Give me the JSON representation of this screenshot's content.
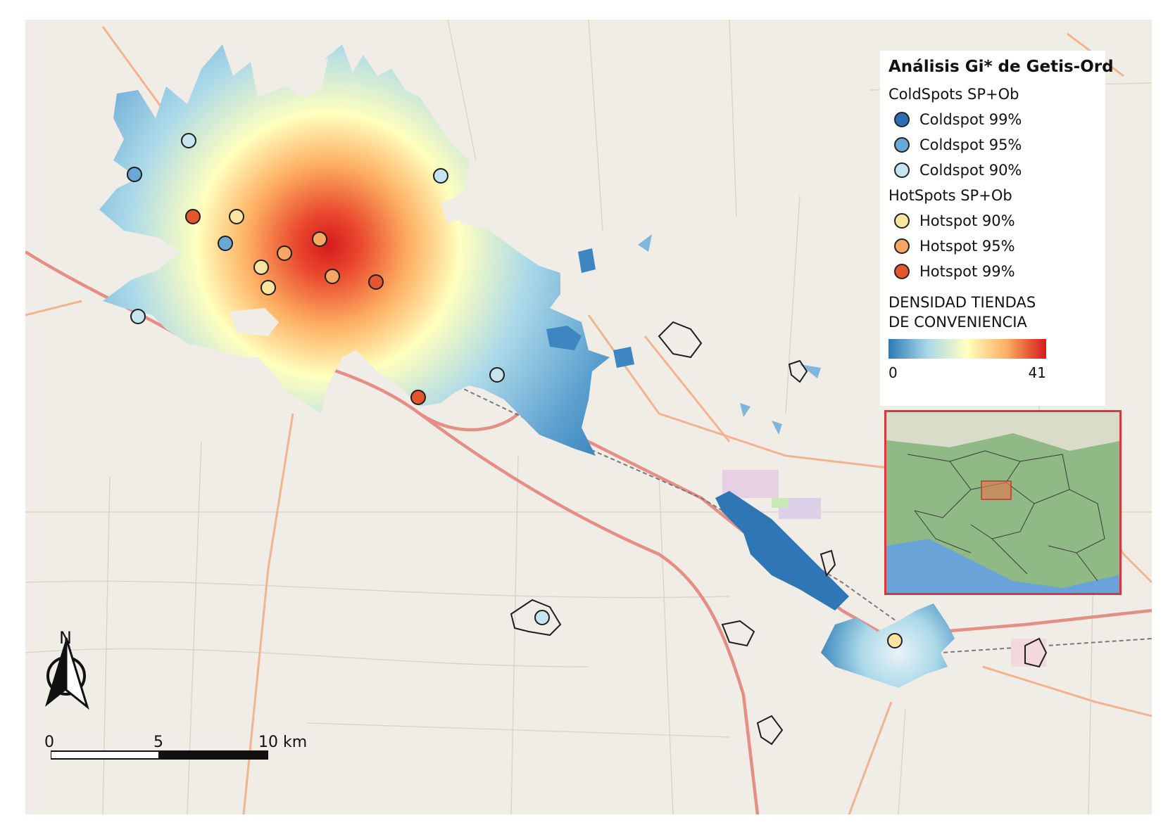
{
  "map": {
    "base_color": "#efede6",
    "road_primary_color": "#e58e86",
    "road_secondary_color": "#f3b38e",
    "polygon_outline_color": "#1e1e1e",
    "hotspots": [
      {
        "class": "hotspot_99",
        "color": "#e4572e"
      },
      {
        "class": "hotspot_95",
        "color": "#f7a763"
      },
      {
        "class": "hotspot_90",
        "color": "#fbe4a0"
      }
    ],
    "coldspots": [
      {
        "class": "coldspot_99",
        "color": "#2c6db5"
      },
      {
        "class": "coldspot_95",
        "color": "#6aa8d8"
      },
      {
        "class": "coldspot_90",
        "color": "#c6e4ee"
      }
    ]
  },
  "legend": {
    "title": "Análisis Gi* de Getis-Ord",
    "coldspots_group": "ColdSpots SP+Ob",
    "cold_items": [
      {
        "label": "Coldspot 99%",
        "color": "#2c6db5"
      },
      {
        "label": "Coldspot 95%",
        "color": "#6aa8d8"
      },
      {
        "label": "Coldspot 90%",
        "color": "#c6e4ee"
      }
    ],
    "hotspots_group": "HotSpots SP+Ob",
    "hot_items": [
      {
        "label": "Hotspot 90%",
        "color": "#fbe4a0"
      },
      {
        "label": "Hotspot 95%",
        "color": "#f7a763"
      },
      {
        "label": "Hotspot 99%",
        "color": "#e4572e"
      }
    ],
    "density_title": "DENSIDAD TIENDAS\nDE CONVENIENCIA",
    "density_min": "0",
    "density_max": "41",
    "ramp_colors": [
      "#2c7bb6",
      "#abd9e9",
      "#ffffbf",
      "#fdae61",
      "#d7191c"
    ]
  },
  "north_arrow": {
    "label": "N"
  },
  "scale_bar": {
    "labels": [
      "0",
      "5",
      "10 km"
    ]
  },
  "inset": {
    "border_color": "#d9363e"
  }
}
